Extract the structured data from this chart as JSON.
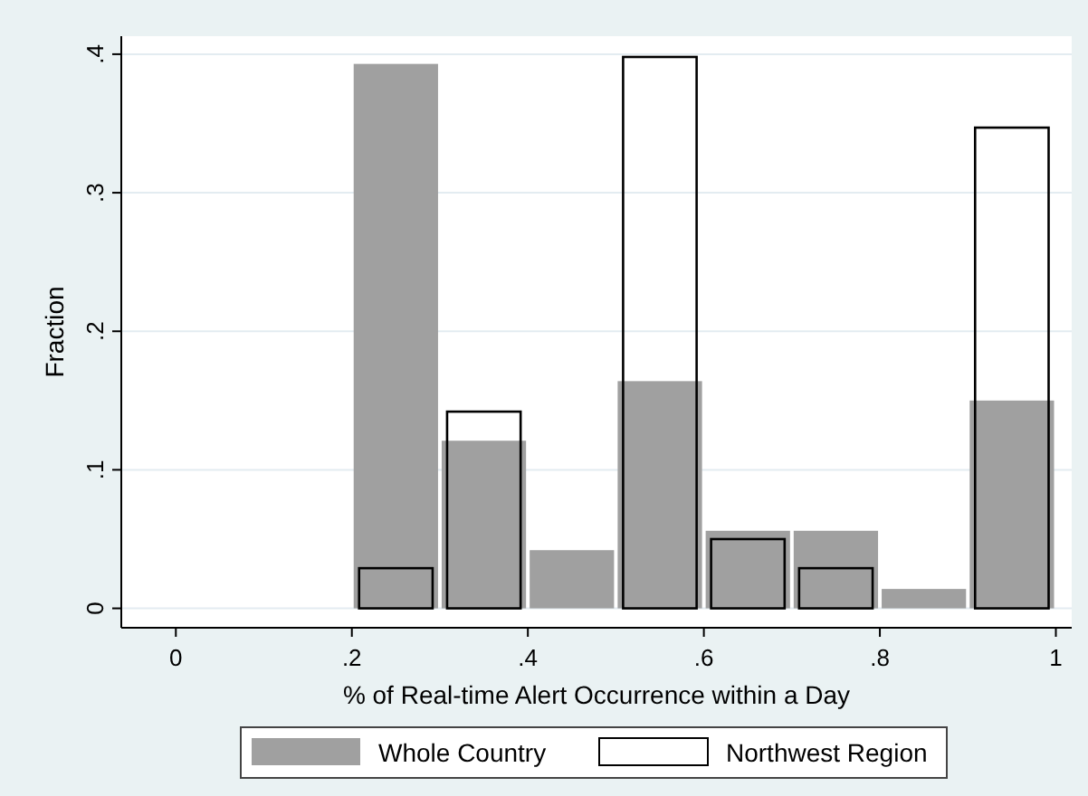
{
  "chart_data": {
    "type": "histogram",
    "xlabel": "% of Real-time Alert Occurrence within a Day",
    "ylabel": "Fraction",
    "bins": [
      0.2,
      0.3,
      0.4,
      0.5,
      0.6,
      0.7,
      0.8,
      0.9,
      1.0
    ],
    "series": [
      {
        "name": "Whole Country",
        "color": "#a0a0a0",
        "values": [
          0.393,
          0.121,
          0.042,
          0.164,
          0.056,
          0.056,
          0.014,
          0.15
        ]
      },
      {
        "name": "Northwest Region",
        "color": "#000000",
        "values": [
          0.029,
          0.142,
          0,
          0.398,
          0.05,
          0.029,
          0,
          0.347
        ]
      }
    ],
    "xlim": [
      -0.062,
      1.018
    ],
    "ylim": [
      -0.014,
      0.413
    ],
    "xticks": [
      0,
      {
        "value": 0.2,
        "label": ".2"
      },
      {
        "value": 0.4,
        "label": ".4"
      },
      {
        "value": 0.6,
        "label": ".6"
      },
      {
        "value": 0.8,
        "label": ".8"
      },
      1
    ],
    "yticks": [
      0,
      {
        "value": 0.1,
        "label": ".1"
      },
      {
        "value": 0.2,
        "label": ".2"
      },
      {
        "value": 0.3,
        "label": ".3"
      },
      {
        "value": 0.4,
        "label": ".4"
      }
    ],
    "grid": "y",
    "legend": "bottom"
  }
}
